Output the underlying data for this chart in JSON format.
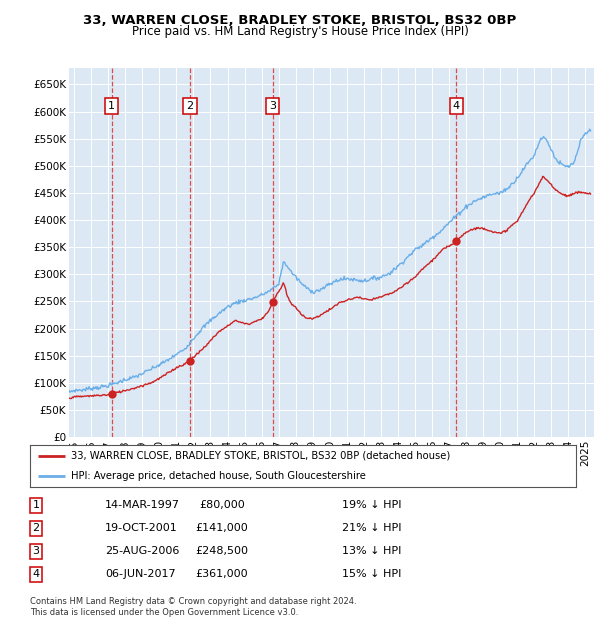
{
  "title1": "33, WARREN CLOSE, BRADLEY STOKE, BRISTOL, BS32 0BP",
  "title2": "Price paid vs. HM Land Registry's House Price Index (HPI)",
  "ylim": [
    0,
    680000
  ],
  "yticks": [
    0,
    50000,
    100000,
    150000,
    200000,
    250000,
    300000,
    350000,
    400000,
    450000,
    500000,
    550000,
    600000,
    650000
  ],
  "ytick_labels": [
    "£0",
    "£50K",
    "£100K",
    "£150K",
    "£200K",
    "£250K",
    "£300K",
    "£350K",
    "£400K",
    "£450K",
    "£500K",
    "£550K",
    "£600K",
    "£650K"
  ],
  "xlim_start": 1994.7,
  "xlim_end": 2025.5,
  "bg_color": "#dce9f5",
  "grid_color": "#ffffff",
  "hpi_color": "#6aaee8",
  "price_color": "#cc2222",
  "vline_color": "#dd4444",
  "purchases": [
    {
      "num": 1,
      "date_x": 1997.2,
      "price": 80000,
      "date_str": "14-MAR-1997",
      "price_str": "£80,000",
      "pct": "19% ↓ HPI"
    },
    {
      "num": 2,
      "date_x": 2001.8,
      "price": 141000,
      "date_str": "19-OCT-2001",
      "price_str": "£141,000",
      "pct": "21% ↓ HPI"
    },
    {
      "num": 3,
      "date_x": 2006.65,
      "price": 248500,
      "date_str": "25-AUG-2006",
      "price_str": "£248,500",
      "pct": "13% ↓ HPI"
    },
    {
      "num": 4,
      "date_x": 2017.43,
      "price": 361000,
      "date_str": "06-JUN-2017",
      "price_str": "£361,000",
      "pct": "15% ↓ HPI"
    }
  ],
  "legend_line1": "33, WARREN CLOSE, BRADLEY STOKE, BRISTOL, BS32 0BP (detached house)",
  "legend_line2": "HPI: Average price, detached house, South Gloucestershire",
  "footer": "Contains HM Land Registry data © Crown copyright and database right 2024.\nThis data is licensed under the Open Government Licence v3.0.",
  "xticks": [
    1995,
    1996,
    1997,
    1998,
    1999,
    2000,
    2001,
    2002,
    2003,
    2004,
    2005,
    2006,
    2007,
    2008,
    2009,
    2010,
    2011,
    2012,
    2013,
    2014,
    2015,
    2016,
    2017,
    2018,
    2019,
    2020,
    2021,
    2022,
    2023,
    2024,
    2025
  ],
  "hpi_anchors": [
    [
      1994.7,
      83000
    ],
    [
      1995.0,
      86000
    ],
    [
      1995.5,
      87000
    ],
    [
      1996.0,
      90000
    ],
    [
      1996.5,
      92000
    ],
    [
      1997.0,
      95000
    ],
    [
      1997.5,
      100000
    ],
    [
      1998.0,
      106000
    ],
    [
      1998.5,
      110000
    ],
    [
      1999.0,
      117000
    ],
    [
      1999.5,
      125000
    ],
    [
      2000.0,
      133000
    ],
    [
      2000.5,
      142000
    ],
    [
      2001.0,
      152000
    ],
    [
      2001.5,
      163000
    ],
    [
      2002.0,
      182000
    ],
    [
      2002.5,
      200000
    ],
    [
      2003.0,
      215000
    ],
    [
      2003.5,
      228000
    ],
    [
      2004.0,
      240000
    ],
    [
      2004.5,
      248000
    ],
    [
      2005.0,
      252000
    ],
    [
      2005.5,
      256000
    ],
    [
      2006.0,
      262000
    ],
    [
      2006.5,
      270000
    ],
    [
      2007.0,
      282000
    ],
    [
      2007.3,
      325000
    ],
    [
      2007.6,
      310000
    ],
    [
      2008.0,
      295000
    ],
    [
      2008.5,
      278000
    ],
    [
      2009.0,
      268000
    ],
    [
      2009.5,
      272000
    ],
    [
      2010.0,
      282000
    ],
    [
      2010.5,
      290000
    ],
    [
      2011.0,
      292000
    ],
    [
      2011.5,
      290000
    ],
    [
      2012.0,
      288000
    ],
    [
      2012.5,
      292000
    ],
    [
      2013.0,
      295000
    ],
    [
      2013.5,
      302000
    ],
    [
      2014.0,
      315000
    ],
    [
      2014.5,
      330000
    ],
    [
      2015.0,
      345000
    ],
    [
      2015.5,
      355000
    ],
    [
      2016.0,
      368000
    ],
    [
      2016.5,
      380000
    ],
    [
      2017.0,
      395000
    ],
    [
      2017.5,
      410000
    ],
    [
      2018.0,
      425000
    ],
    [
      2018.5,
      435000
    ],
    [
      2019.0,
      442000
    ],
    [
      2019.5,
      448000
    ],
    [
      2020.0,
      450000
    ],
    [
      2020.5,
      460000
    ],
    [
      2021.0,
      478000
    ],
    [
      2021.5,
      500000
    ],
    [
      2022.0,
      520000
    ],
    [
      2022.3,
      545000
    ],
    [
      2022.5,
      555000
    ],
    [
      2022.7,
      548000
    ],
    [
      2023.0,
      530000
    ],
    [
      2023.3,
      510000
    ],
    [
      2023.5,
      505000
    ],
    [
      2023.7,
      500000
    ],
    [
      2024.0,
      498000
    ],
    [
      2024.3,
      505000
    ],
    [
      2024.5,
      520000
    ],
    [
      2024.7,
      545000
    ],
    [
      2025.0,
      560000
    ],
    [
      2025.3,
      565000
    ]
  ],
  "price_anchors": [
    [
      1994.7,
      72000
    ],
    [
      1995.0,
      74000
    ],
    [
      1995.5,
      75000
    ],
    [
      1996.0,
      76000
    ],
    [
      1996.5,
      77000
    ],
    [
      1997.0,
      78000
    ],
    [
      1997.2,
      80000
    ],
    [
      1997.5,
      82000
    ],
    [
      1998.0,
      86000
    ],
    [
      1998.5,
      90000
    ],
    [
      1999.0,
      95000
    ],
    [
      1999.5,
      100000
    ],
    [
      2000.0,
      108000
    ],
    [
      2000.5,
      118000
    ],
    [
      2001.0,
      128000
    ],
    [
      2001.5,
      135000
    ],
    [
      2001.8,
      141000
    ],
    [
      2002.0,
      148000
    ],
    [
      2002.3,
      155000
    ],
    [
      2002.5,
      162000
    ],
    [
      2002.8,
      170000
    ],
    [
      2003.0,
      178000
    ],
    [
      2003.3,
      188000
    ],
    [
      2003.5,
      195000
    ],
    [
      2003.8,
      200000
    ],
    [
      2004.0,
      205000
    ],
    [
      2004.3,
      212000
    ],
    [
      2004.5,
      215000
    ],
    [
      2004.7,
      212000
    ],
    [
      2005.0,
      210000
    ],
    [
      2005.3,
      208000
    ],
    [
      2005.5,
      212000
    ],
    [
      2005.8,
      215000
    ],
    [
      2006.0,
      218000
    ],
    [
      2006.3,
      228000
    ],
    [
      2006.5,
      238000
    ],
    [
      2006.65,
      248500
    ],
    [
      2006.8,
      258000
    ],
    [
      2007.0,
      268000
    ],
    [
      2007.2,
      278000
    ],
    [
      2007.3,
      285000
    ],
    [
      2007.5,
      260000
    ],
    [
      2007.7,
      248000
    ],
    [
      2008.0,
      238000
    ],
    [
      2008.3,
      228000
    ],
    [
      2008.6,
      220000
    ],
    [
      2009.0,
      218000
    ],
    [
      2009.3,
      222000
    ],
    [
      2009.6,
      228000
    ],
    [
      2010.0,
      235000
    ],
    [
      2010.3,
      242000
    ],
    [
      2010.6,
      248000
    ],
    [
      2011.0,
      252000
    ],
    [
      2011.3,
      255000
    ],
    [
      2011.6,
      258000
    ],
    [
      2012.0,
      255000
    ],
    [
      2012.3,
      252000
    ],
    [
      2012.6,
      255000
    ],
    [
      2013.0,
      258000
    ],
    [
      2013.3,
      262000
    ],
    [
      2013.6,
      265000
    ],
    [
      2014.0,
      272000
    ],
    [
      2014.3,
      278000
    ],
    [
      2014.6,
      285000
    ],
    [
      2015.0,
      295000
    ],
    [
      2015.3,
      305000
    ],
    [
      2015.6,
      315000
    ],
    [
      2016.0,
      325000
    ],
    [
      2016.3,
      335000
    ],
    [
      2016.6,
      345000
    ],
    [
      2017.0,
      352000
    ],
    [
      2017.43,
      361000
    ],
    [
      2017.6,
      368000
    ],
    [
      2017.8,
      372000
    ],
    [
      2018.0,
      378000
    ],
    [
      2018.3,
      382000
    ],
    [
      2018.6,
      385000
    ],
    [
      2019.0,
      385000
    ],
    [
      2019.3,
      382000
    ],
    [
      2019.6,
      378000
    ],
    [
      2020.0,
      375000
    ],
    [
      2020.3,
      380000
    ],
    [
      2020.6,
      388000
    ],
    [
      2021.0,
      398000
    ],
    [
      2021.3,
      415000
    ],
    [
      2021.6,
      432000
    ],
    [
      2022.0,
      450000
    ],
    [
      2022.3,
      468000
    ],
    [
      2022.5,
      480000
    ],
    [
      2022.7,
      475000
    ],
    [
      2023.0,
      465000
    ],
    [
      2023.3,
      455000
    ],
    [
      2023.6,
      448000
    ],
    [
      2024.0,
      445000
    ],
    [
      2024.3,
      448000
    ],
    [
      2024.6,
      452000
    ],
    [
      2025.0,
      450000
    ],
    [
      2025.3,
      448000
    ]
  ]
}
